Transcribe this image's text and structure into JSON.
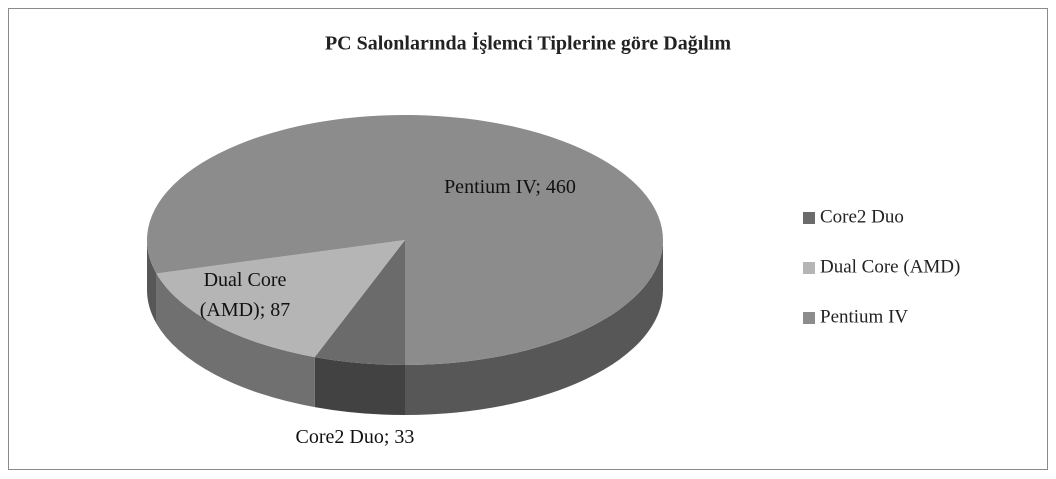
{
  "chart_data": {
    "type": "pie3d",
    "title": "PC Salonlarında İşlemci Tiplerine göre Dağılım",
    "categories": [
      "Core2 Duo",
      "Dual Core (AMD)",
      "Pentium IV"
    ],
    "values": [
      33,
      87,
      460
    ],
    "value_labels": [
      "Core2 Duo; 33",
      "Dual Core (AMD); 87",
      "Pentium IV; 460"
    ],
    "colors": [
      "#6b6b6b",
      "#b5b5b5",
      "#8c8c8c"
    ],
    "legend": "right"
  }
}
